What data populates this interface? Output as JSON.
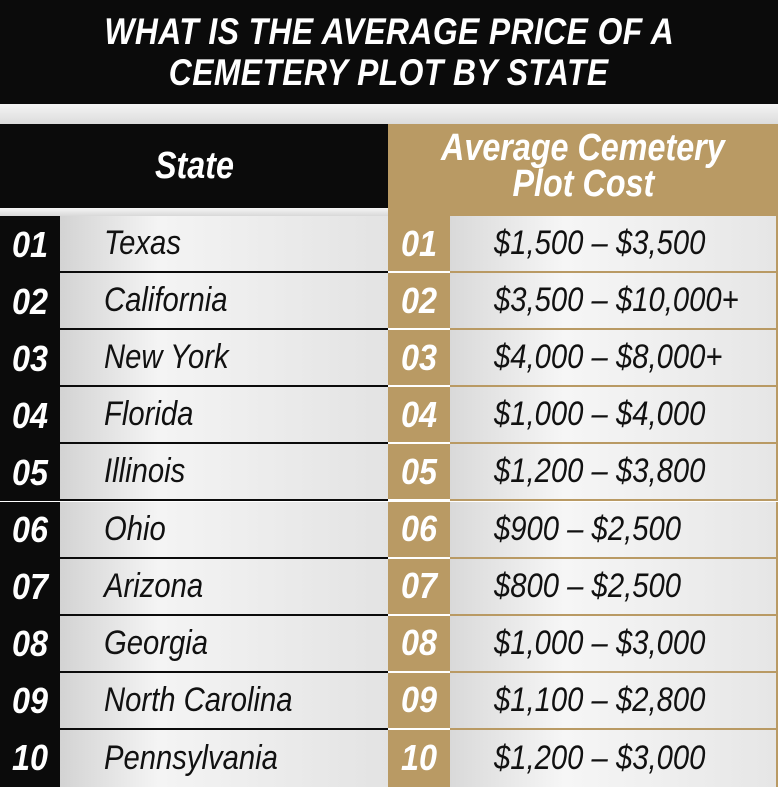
{
  "title": {
    "line1": "WHAT IS THE AVERAGE PRICE OF A",
    "line2": "CEMETERY PLOT BY STATE"
  },
  "table": {
    "headers": {
      "state": "State",
      "cost_line1": "Average Cemetery",
      "cost_line2": "Plot Cost"
    },
    "rows": [
      {
        "rank": "01",
        "state": "Texas",
        "cost": "$1,500 – $3,500"
      },
      {
        "rank": "02",
        "state": "California",
        "cost": "$3,500 – $10,000+"
      },
      {
        "rank": "03",
        "state": "New York",
        "cost": "$4,000 – $8,000+"
      },
      {
        "rank": "04",
        "state": "Florida",
        "cost": "$1,000 – $4,000"
      },
      {
        "rank": "05",
        "state": "Illinois",
        "cost": "$1,200 – $3,800"
      },
      {
        "rank": "06",
        "state": "Ohio",
        "cost": "$900 – $2,500"
      },
      {
        "rank": "07",
        "state": "Arizona",
        "cost": "$800 – $2,500"
      },
      {
        "rank": "08",
        "state": "Georgia",
        "cost": "$1,000 – $3,000"
      },
      {
        "rank": "09",
        "state": "North Carolina",
        "cost": "$1,100 – $2,800"
      },
      {
        "rank": "10",
        "state": "Pennsylvania",
        "cost": "$1,200 – $3,000"
      }
    ]
  },
  "colors": {
    "black": "#0b0b0b",
    "gold": "#b99a64",
    "light_gray": "#eeeeee"
  }
}
